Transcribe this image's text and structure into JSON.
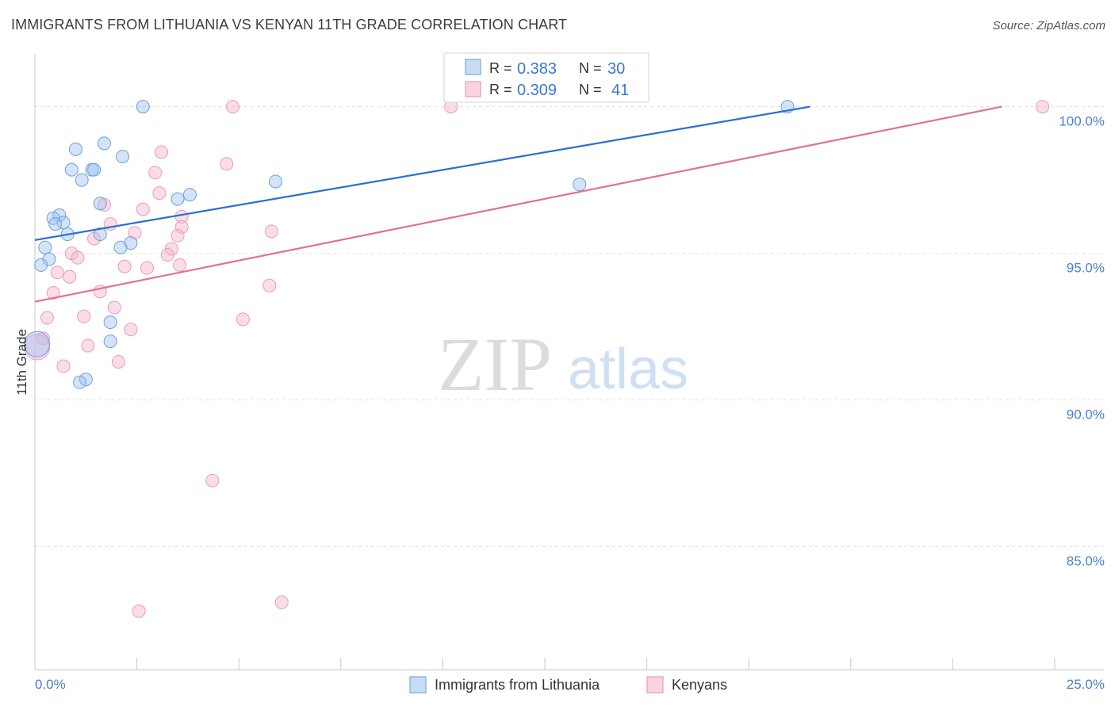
{
  "title": "IMMIGRANTS FROM LITHUANIA VS KENYAN 11TH GRADE CORRELATION CHART",
  "source": "Source: ZipAtlas.com",
  "watermark": {
    "zip": "ZIP",
    "atlas": "atlas"
  },
  "chart_data": {
    "type": "scatter",
    "xlabel": "",
    "ylabel": "11th Grade",
    "xlim": [
      0,
      25
    ],
    "ylim": [
      80.8,
      101.8
    ],
    "x_tick_labels": [
      "0.0%",
      "25.0%"
    ],
    "y_ticks": [
      85,
      90,
      95,
      100
    ],
    "y_tick_labels": [
      "85.0%",
      "90.0%",
      "95.0%",
      "100.0%"
    ],
    "grid": true,
    "legend": {
      "placement": "top-center",
      "entries": [
        {
          "r_label": "R =",
          "r_value": "0.383",
          "n_label": "N =",
          "n_value": "30"
        },
        {
          "r_label": "R =",
          "r_value": "0.309",
          "n_label": "N =",
          "n_value": "41"
        }
      ]
    },
    "series": [
      {
        "name": "Immigrants from Lithuania",
        "color": "#8fb4e8",
        "line_color": "#2a6fd0",
        "trend": {
          "x0": 0,
          "y0": 95.45,
          "x1": 19.0,
          "y1": 100.0
        },
        "points": [
          [
            2.65,
            100.0
          ],
          [
            18.45,
            100.0
          ],
          [
            1.0,
            98.55
          ],
          [
            1.7,
            98.75
          ],
          [
            2.15,
            98.3
          ],
          [
            0.9,
            97.85
          ],
          [
            1.4,
            97.85
          ],
          [
            1.45,
            97.85
          ],
          [
            1.15,
            97.5
          ],
          [
            5.9,
            97.45
          ],
          [
            13.35,
            97.35
          ],
          [
            3.8,
            97.0
          ],
          [
            3.5,
            96.85
          ],
          [
            1.6,
            96.7
          ],
          [
            0.6,
            96.3
          ],
          [
            0.45,
            96.2
          ],
          [
            0.7,
            96.05
          ],
          [
            0.5,
            96.0
          ],
          [
            1.6,
            95.65
          ],
          [
            0.8,
            95.65
          ],
          [
            2.35,
            95.35
          ],
          [
            2.1,
            95.2
          ],
          [
            0.25,
            95.2
          ],
          [
            0.35,
            94.8
          ],
          [
            0.15,
            94.6
          ],
          [
            1.85,
            92.65
          ],
          [
            1.85,
            92.0
          ],
          [
            0.05,
            91.9
          ],
          [
            1.25,
            90.7
          ],
          [
            1.1,
            90.6
          ]
        ]
      },
      {
        "name": "Kenyans",
        "color": "#f2a7c0",
        "line_color": "#e07098",
        "trend": {
          "x0": 0,
          "y0": 93.35,
          "x1": 23.7,
          "y1": 100.0
        },
        "points": [
          [
            10.2,
            100.0
          ],
          [
            24.7,
            100.0
          ],
          [
            4.85,
            100.0
          ],
          [
            3.1,
            98.45
          ],
          [
            4.7,
            98.05
          ],
          [
            2.95,
            97.75
          ],
          [
            3.05,
            97.05
          ],
          [
            1.7,
            96.65
          ],
          [
            2.65,
            96.5
          ],
          [
            3.6,
            96.25
          ],
          [
            1.85,
            96.0
          ],
          [
            3.6,
            95.9
          ],
          [
            5.8,
            95.75
          ],
          [
            2.45,
            95.7
          ],
          [
            3.5,
            95.6
          ],
          [
            1.45,
            95.5
          ],
          [
            3.35,
            95.15
          ],
          [
            0.9,
            95.0
          ],
          [
            3.25,
            94.95
          ],
          [
            1.05,
            94.85
          ],
          [
            2.2,
            94.55
          ],
          [
            2.75,
            94.5
          ],
          [
            3.55,
            94.6
          ],
          [
            0.55,
            94.35
          ],
          [
            0.85,
            94.2
          ],
          [
            5.75,
            93.9
          ],
          [
            1.6,
            93.7
          ],
          [
            0.45,
            93.65
          ],
          [
            1.95,
            93.15
          ],
          [
            1.2,
            92.85
          ],
          [
            0.3,
            92.8
          ],
          [
            5.1,
            92.75
          ],
          [
            2.35,
            92.4
          ],
          [
            0.2,
            92.1
          ],
          [
            1.3,
            91.85
          ],
          [
            0.7,
            91.15
          ],
          [
            2.05,
            91.3
          ],
          [
            0.05,
            91.8
          ],
          [
            4.35,
            87.25
          ],
          [
            6.05,
            83.1
          ],
          [
            2.55,
            82.8
          ]
        ]
      }
    ]
  }
}
